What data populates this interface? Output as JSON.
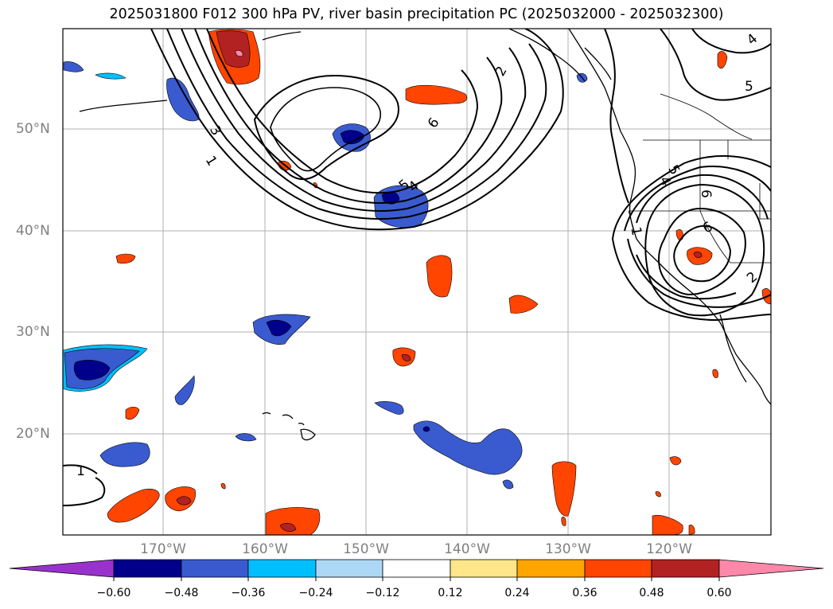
{
  "title": "2025031800 F012 300 hPa PV, river basin precipitation PC (2025032000 - 2025032300)",
  "lat_labels": [
    "50°N",
    "40°N",
    "30°N",
    "20°N"
  ],
  "lon_labels": [
    "170°W",
    "160°W",
    "150°W",
    "140°W",
    "130°W",
    "120°W"
  ],
  "contour_labels": [
    "1",
    "3",
    "2",
    "6",
    "5",
    "4",
    "1",
    "5",
    "4",
    "6",
    "6",
    "2",
    "5",
    "1",
    "4"
  ],
  "colorbar": {
    "ticks": [
      "−0.60",
      "−0.48",
      "−0.36",
      "−0.24",
      "−0.12",
      "0.12",
      "0.24",
      "0.36",
      "0.48",
      "0.60"
    ],
    "colors": [
      "#9932cc",
      "#00008b",
      "#3a5bcf",
      "#00bfff",
      "#add8f5",
      "#ffffff",
      "#ffe68a",
      "#ffa500",
      "#ff4500",
      "#b22222",
      "#ff88aa"
    ]
  },
  "map_colors": {
    "land_border": "#000000",
    "grid": "#b0b0b0"
  }
}
